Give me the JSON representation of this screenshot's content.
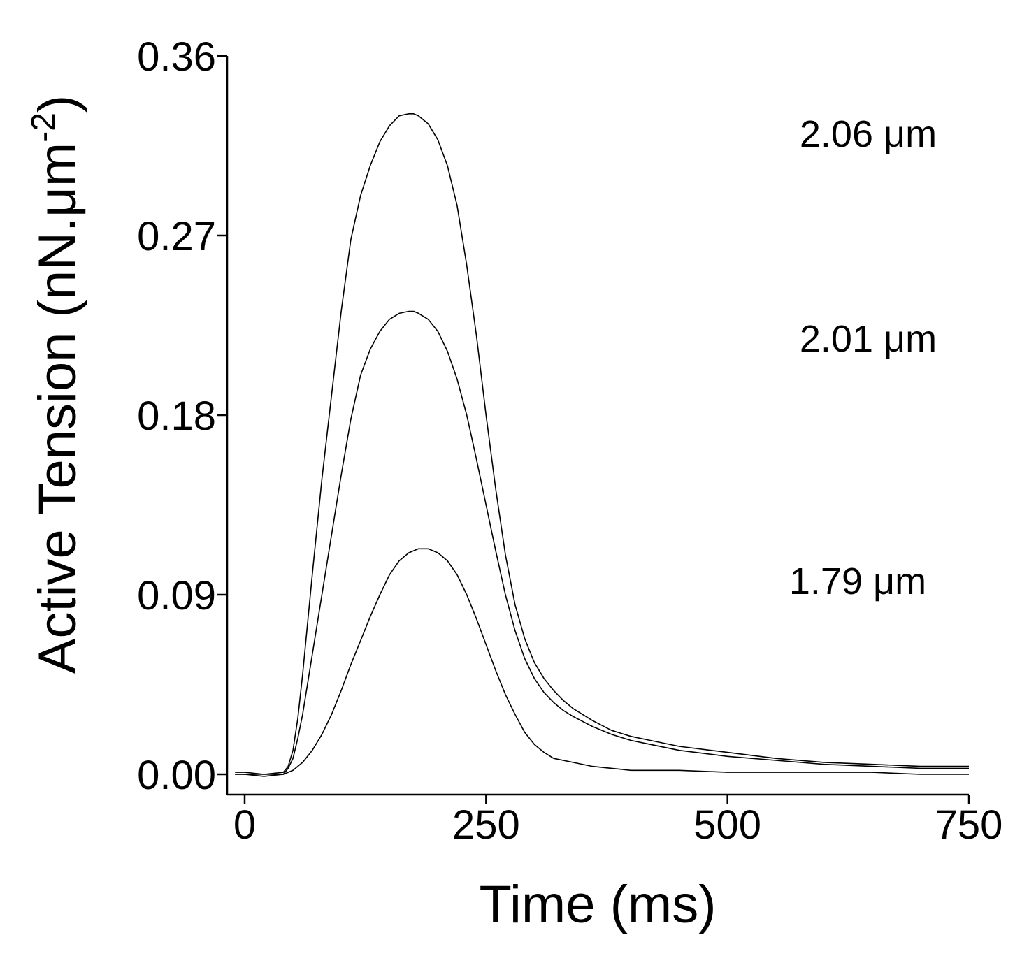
{
  "chart_data": {
    "type": "line",
    "title": "",
    "xlabel": "Time (ms)",
    "ylabel_main": "Active Tension (nN.μm",
    "ylabel_sup": "-2",
    "ylabel_close": ")",
    "xlim": [
      -25,
      750
    ],
    "ylim": [
      -0.011,
      0.36
    ],
    "xticks": [
      0,
      250,
      500,
      750
    ],
    "xtick_labels": [
      "0",
      "250",
      "500",
      "750"
    ],
    "yticks": [
      0.0,
      0.09,
      0.18,
      0.27,
      0.36
    ],
    "ytick_labels": [
      "0.00",
      "0.09",
      "0.18",
      "0.27",
      "0.36"
    ],
    "grid": false,
    "legend": "none",
    "series": [
      {
        "name": "2.06 μm",
        "x": [
          -10,
          0,
          20,
          40,
          45,
          50,
          55,
          60,
          70,
          80,
          90,
          100,
          110,
          120,
          130,
          140,
          150,
          160,
          170,
          175,
          180,
          190,
          200,
          210,
          220,
          230,
          240,
          250,
          260,
          270,
          280,
          290,
          300,
          310,
          320,
          330,
          340,
          360,
          380,
          400,
          420,
          450,
          500,
          550,
          600,
          650,
          700,
          750
        ],
        "y": [
          0.001,
          0.001,
          0.0,
          0.001,
          0.004,
          0.012,
          0.028,
          0.05,
          0.1,
          0.148,
          0.19,
          0.232,
          0.268,
          0.29,
          0.305,
          0.317,
          0.325,
          0.33,
          0.331,
          0.331,
          0.33,
          0.326,
          0.318,
          0.305,
          0.285,
          0.255,
          0.22,
          0.18,
          0.143,
          0.11,
          0.085,
          0.068,
          0.056,
          0.048,
          0.042,
          0.037,
          0.033,
          0.027,
          0.022,
          0.019,
          0.017,
          0.014,
          0.011,
          0.008,
          0.006,
          0.005,
          0.004,
          0.004
        ]
      },
      {
        "name": "2.01 μm",
        "x": [
          -10,
          0,
          20,
          40,
          45,
          50,
          55,
          60,
          70,
          80,
          90,
          100,
          110,
          120,
          130,
          140,
          150,
          160,
          170,
          175,
          180,
          190,
          200,
          210,
          220,
          230,
          240,
          250,
          260,
          270,
          280,
          290,
          300,
          310,
          320,
          330,
          340,
          360,
          380,
          400,
          420,
          450,
          500,
          550,
          600,
          650,
          700,
          750
        ],
        "y": [
          0.0,
          0.0,
          0.0,
          0.0,
          0.003,
          0.008,
          0.018,
          0.03,
          0.06,
          0.09,
          0.12,
          0.15,
          0.178,
          0.2,
          0.213,
          0.222,
          0.228,
          0.231,
          0.232,
          0.232,
          0.231,
          0.228,
          0.222,
          0.212,
          0.198,
          0.18,
          0.158,
          0.135,
          0.112,
          0.09,
          0.072,
          0.058,
          0.048,
          0.041,
          0.036,
          0.032,
          0.029,
          0.024,
          0.02,
          0.017,
          0.015,
          0.012,
          0.009,
          0.007,
          0.005,
          0.004,
          0.003,
          0.003
        ]
      },
      {
        "name": "1.79 μm",
        "x": [
          -10,
          0,
          20,
          40,
          50,
          60,
          70,
          80,
          90,
          100,
          110,
          120,
          130,
          140,
          150,
          160,
          170,
          180,
          185,
          190,
          200,
          210,
          220,
          230,
          240,
          250,
          260,
          270,
          280,
          290,
          300,
          310,
          320,
          340,
          360,
          380,
          400,
          450,
          500,
          550,
          600,
          650,
          700,
          750
        ],
        "y": [
          0.0,
          0.0,
          -0.001,
          0.0,
          0.002,
          0.006,
          0.012,
          0.02,
          0.03,
          0.042,
          0.055,
          0.067,
          0.079,
          0.09,
          0.1,
          0.107,
          0.111,
          0.113,
          0.113,
          0.113,
          0.111,
          0.107,
          0.1,
          0.09,
          0.078,
          0.065,
          0.052,
          0.04,
          0.03,
          0.021,
          0.015,
          0.011,
          0.008,
          0.006,
          0.004,
          0.003,
          0.002,
          0.002,
          0.001,
          0.001,
          0.001,
          0.001,
          0.0,
          0.0
        ]
      }
    ]
  }
}
